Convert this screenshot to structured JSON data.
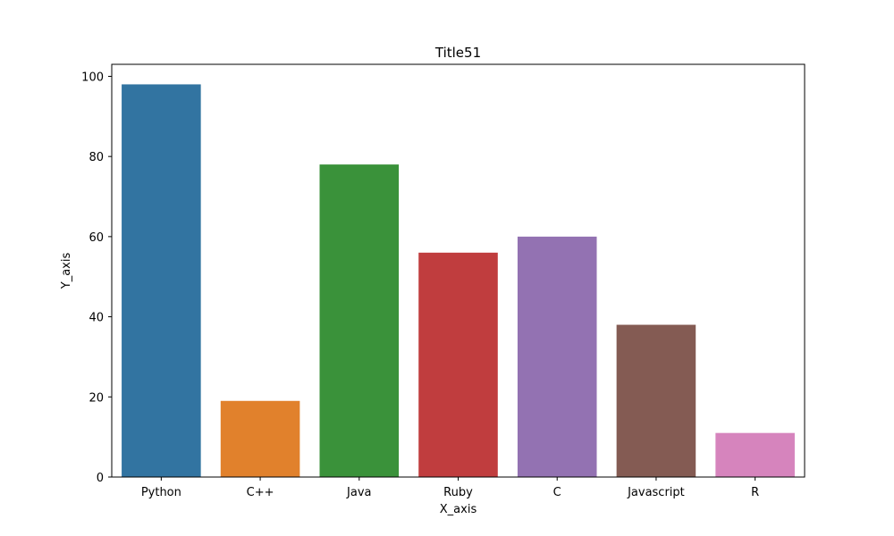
{
  "chart_data": {
    "type": "bar",
    "title": "Title51",
    "xlabel": "X_axis",
    "ylabel": "Y_axis",
    "categories": [
      "Python",
      "C++",
      "Java",
      "Ruby",
      "C",
      "Javascript",
      "R"
    ],
    "values": [
      98,
      19,
      78,
      56,
      60,
      38,
      11
    ],
    "colors": [
      "#3274a1",
      "#e1812c",
      "#3a923a",
      "#c03d3e",
      "#9372b2",
      "#845b53",
      "#d684bd"
    ],
    "ylim": [
      0,
      103
    ],
    "yticks": [
      0,
      20,
      40,
      60,
      80,
      100
    ],
    "grid": false,
    "legend": "none"
  }
}
